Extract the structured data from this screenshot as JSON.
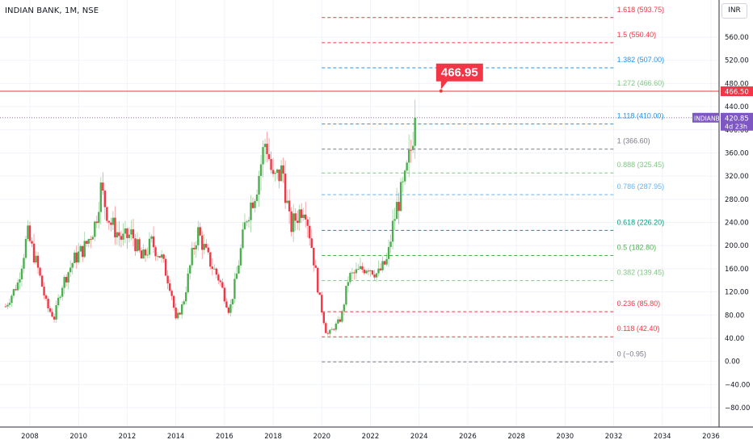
{
  "header": {
    "title": "INDIAN BANK, 1M, NSE"
  },
  "currency_button": "INR",
  "chart_data": {
    "type": "candlestick",
    "title": "INDIAN BANK, 1M, NSE",
    "currency": "INR",
    "ylim": [
      -100,
      600
    ],
    "xlim": [
      2007.0,
      2036.9
    ],
    "y_ticks": [
      "560.00",
      "520.00",
      "480.00",
      "440.00",
      "400.00",
      "360.00",
      "320.00",
      "280.00",
      "240.00",
      "200.00",
      "160.00",
      "120.00",
      "80.00",
      "40.00",
      "0.00",
      "−40.00",
      "−80.00"
    ],
    "y_tick_values": [
      560,
      520,
      480,
      440,
      400,
      360,
      320,
      280,
      240,
      200,
      160,
      120,
      80,
      40,
      0,
      -40,
      -80
    ],
    "x_ticks": [
      "2008",
      "2010",
      "2012",
      "2014",
      "2016",
      "2018",
      "2020",
      "2022",
      "2024",
      "2026",
      "2028",
      "2030",
      "2032",
      "2034",
      "2036"
    ],
    "x_tick_values": [
      2008,
      2010,
      2012,
      2014,
      2016,
      2018,
      2020,
      2022,
      2024,
      2026,
      2028,
      2030,
      2032,
      2034,
      2036
    ],
    "grid": true,
    "fib_levels": [
      {
        "label": "1.618 (593.75)",
        "value": 593.75,
        "color": "#f23645"
      },
      {
        "label": "1.5 (550.40)",
        "value": 550.4,
        "color": "#f23645"
      },
      {
        "label": "1.382 (507.00)",
        "value": 507.0,
        "color": "#2196f3"
      },
      {
        "label": "1.272 (466.60)",
        "value": 466.6,
        "color": "#81c784"
      },
      {
        "label": "1.118 (410.00)",
        "value": 410.0,
        "color": "#2196f3"
      },
      {
        "label": "1 (366.60)",
        "value": 366.6,
        "color": "#787b86"
      },
      {
        "label": "0.888 (325.45)",
        "value": 325.45,
        "color": "#81c784"
      },
      {
        "label": "0.786 (287.95)",
        "value": 287.95,
        "color": "#64b5f6"
      },
      {
        "label": "0.618 (226.20)",
        "value": 226.2,
        "color": "#089981"
      },
      {
        "label": "0.5 (182.80)",
        "value": 182.8,
        "color": "#4caf50"
      },
      {
        "label": "0.382 (139.45)",
        "value": 139.45,
        "color": "#81c784"
      },
      {
        "label": "0.236 (85.80)",
        "value": 85.8,
        "color": "#f23645"
      },
      {
        "label": "0.118 (42.40)",
        "value": 42.4,
        "color": "#f23645"
      },
      {
        "label": "0 (−0.95)",
        "value": -0.95,
        "color": "#787b86"
      }
    ],
    "fib_x_range": [
      2020.0,
      2032.0
    ],
    "horizontal_line": {
      "value": 466.5,
      "label": "466.50",
      "color": "#f23645"
    },
    "callout": {
      "label": "466.95",
      "value": 466.95,
      "x": 2024.9,
      "color": "#f23645"
    },
    "last_price": {
      "symbol": "INDIANB",
      "value": 420.85,
      "countdown": "4d 23h",
      "color": "#7e57c2"
    },
    "colors": {
      "up": "#4caf50",
      "down": "#f23645",
      "grid": "#f0f3fa",
      "axis_text": "#131722"
    },
    "anchors": [
      [
        2007.0,
        95
      ],
      [
        2007.5,
        135
      ],
      [
        2007.9,
        220
      ],
      [
        2008.3,
        165
      ],
      [
        2008.7,
        95
      ],
      [
        2009.0,
        75
      ],
      [
        2009.3,
        130
      ],
      [
        2009.8,
        175
      ],
      [
        2010.3,
        200
      ],
      [
        2010.7,
        240
      ],
      [
        2010.9,
        300
      ],
      [
        2011.3,
        240
      ],
      [
        2011.8,
        210
      ],
      [
        2012.2,
        220
      ],
      [
        2012.6,
        175
      ],
      [
        2013.0,
        205
      ],
      [
        2013.4,
        180
      ],
      [
        2013.8,
        125
      ],
      [
        2014.0,
        70
      ],
      [
        2014.3,
        100
      ],
      [
        2014.7,
        190
      ],
      [
        2014.9,
        225
      ],
      [
        2015.3,
        180
      ],
      [
        2015.8,
        140
      ],
      [
        2016.2,
        85
      ],
      [
        2016.5,
        150
      ],
      [
        2016.9,
        250
      ],
      [
        2017.3,
        300
      ],
      [
        2017.7,
        385
      ],
      [
        2018.0,
        310
      ],
      [
        2018.4,
        330
      ],
      [
        2018.7,
        230
      ],
      [
        2019.1,
        260
      ],
      [
        2019.3,
        275
      ],
      [
        2019.6,
        195
      ],
      [
        2019.9,
        110
      ],
      [
        2020.2,
        45
      ],
      [
        2020.5,
        58
      ],
      [
        2020.8,
        75
      ],
      [
        2021.1,
        145
      ],
      [
        2021.5,
        155
      ],
      [
        2021.9,
        165
      ],
      [
        2022.3,
        150
      ],
      [
        2022.7,
        175
      ],
      [
        2022.9,
        230
      ],
      [
        2023.1,
        270
      ],
      [
        2023.4,
        305
      ],
      [
        2023.6,
        350
      ],
      [
        2023.7,
        375
      ],
      [
        2023.8,
        420.85
      ]
    ],
    "months_per_year": 12
  }
}
